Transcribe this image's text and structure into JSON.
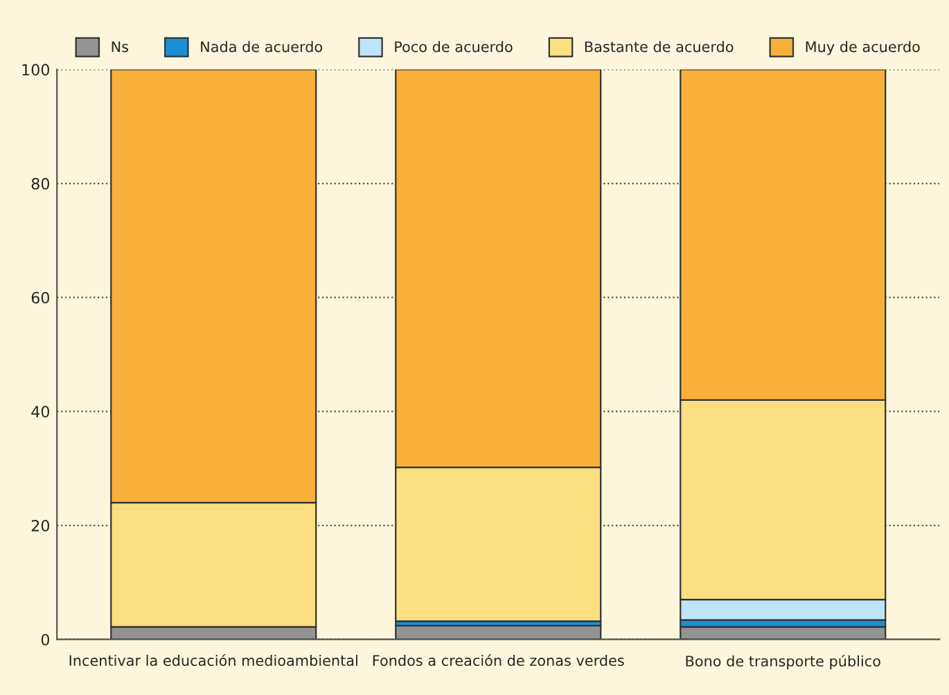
{
  "chart_data": {
    "type": "bar",
    "stacked": true,
    "categories": [
      "Incentivar la educación medioambiental",
      "Fondos a creación de zonas verdes",
      "Bono de transporte público"
    ],
    "series": [
      {
        "name": "Ns",
        "color": "#939393",
        "values": [
          2.2,
          2.4,
          2.2
        ]
      },
      {
        "name": "Nada de acuerdo",
        "color": "#1a8fd6",
        "values": [
          0,
          0.8,
          1.2
        ]
      },
      {
        "name": "Poco de acuerdo",
        "color": "#bfe3f7",
        "values": [
          0,
          0,
          3.6
        ]
      },
      {
        "name": "Bastante de acuerdo",
        "color": "#fbdf80",
        "values": [
          21.8,
          27,
          35
        ]
      },
      {
        "name": "Muy de acuerdo",
        "color": "#f8b03a",
        "values": [
          76,
          69.8,
          58
        ]
      }
    ],
    "ylim": [
      0,
      100
    ],
    "yticks": [
      0,
      20,
      40,
      60,
      80,
      100
    ],
    "grid": "y",
    "legend": "top"
  }
}
